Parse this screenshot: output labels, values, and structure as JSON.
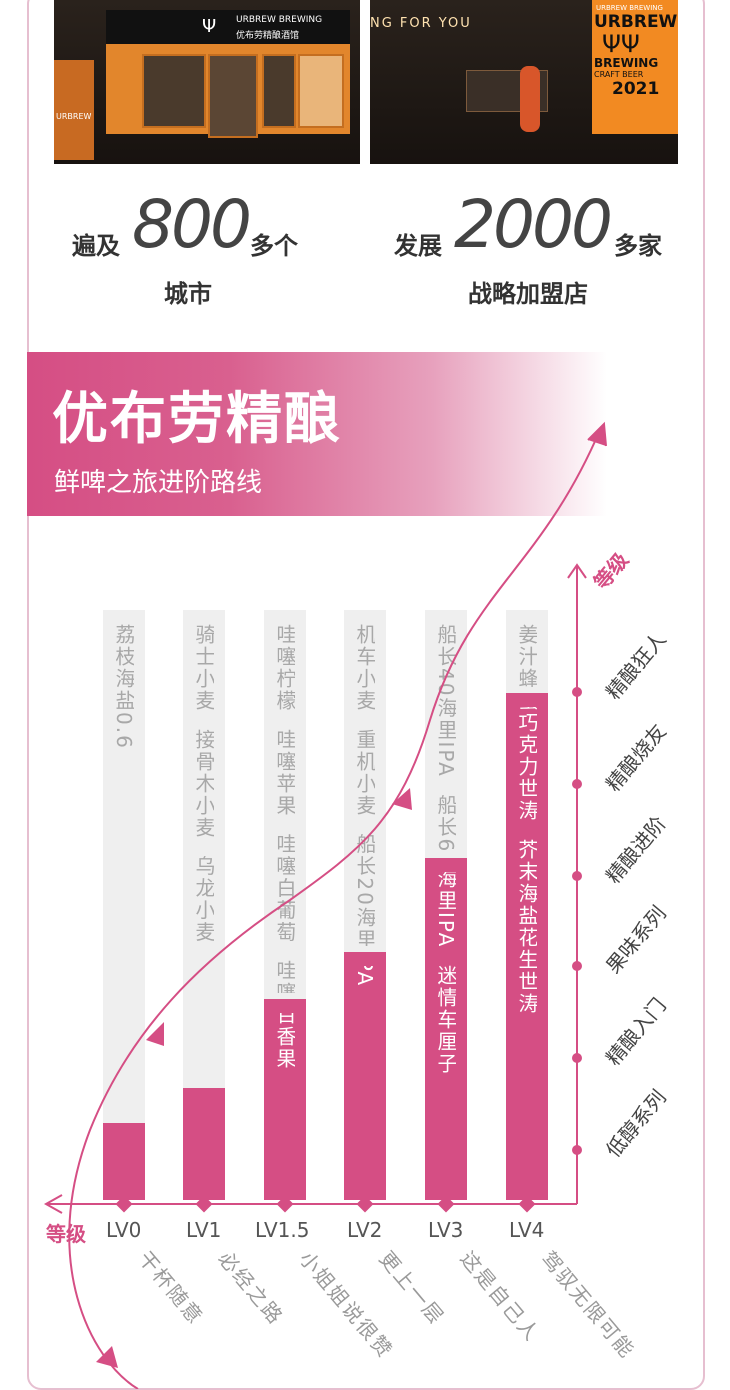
{
  "photos": {
    "left": {
      "brand_en": "URBREW BREWING",
      "brand_cn": "优布劳精酿酒馆",
      "side_sign": "URBREW"
    },
    "right": {
      "neon": "NG FOR YOU",
      "poster_top": "URBREW BREWING",
      "poster_name": "URBREW",
      "poster_brewing": "BREWING",
      "poster_craft": "CRAFT BEER",
      "poster_year": "2021"
    }
  },
  "stats": [
    {
      "prefix": "遍及",
      "number": "800",
      "suffix": "多个",
      "line2": "城市"
    },
    {
      "prefix": "发展",
      "number": "2000",
      "suffix": "多家",
      "line2": "战略加盟店"
    }
  ],
  "banner": {
    "title": "优布劳精酿",
    "subtitle": "鲜啤之旅进阶路线"
  },
  "axis": {
    "x_label": "等级",
    "y_label": "等级"
  },
  "grades": [
    "低醇系列",
    "精酿入门",
    "果味系列",
    "精酿进阶",
    "精酿烧友",
    "精酿狂人"
  ],
  "levels": [
    {
      "label": "LV0",
      "beers": "荔枝海盐0.6",
      "fill": 0.13,
      "tag": "干杯随意"
    },
    {
      "label": "LV1",
      "beers": "骑士小麦  接骨木小麦  乌龙小麦",
      "fill": 0.19,
      "tag": "必经之路"
    },
    {
      "label": "LV1.5",
      "beers": "哇噻柠檬  哇噻苹果  哇噻白葡萄  哇噻百香果",
      "fill": 0.34,
      "tag": "小姐姐说很赞"
    },
    {
      "label": "LV2",
      "beers": "机车小麦  重机小麦  船长20海里IPA",
      "fill": 0.42,
      "tag": "更上一层"
    },
    {
      "label": "LV3",
      "beers": "船长40海里IPA  船长60海里IPA  迷情车厘子",
      "fill": 0.58,
      "tag": "这是自己人"
    },
    {
      "label": "LV4",
      "beers": "姜汁蜂蜜巧克力世涛  芥末海盐花生世涛",
      "fill": 0.86,
      "tag": "驾驭无限可能"
    }
  ],
  "colors": {
    "accent": "#d54e84",
    "bar_bg": "#efefef",
    "text_gray": "#a8a8a8"
  }
}
